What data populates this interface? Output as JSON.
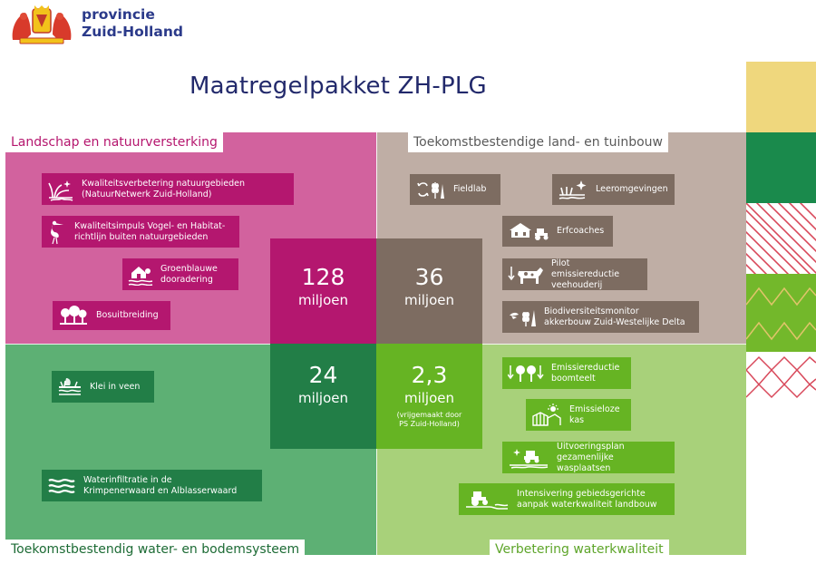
{
  "header": {
    "logo_line1": "provincie",
    "logo_line2": "Zuid-Holland",
    "title": "Maatregelpakket ZH-PLG"
  },
  "quadrants": {
    "top_left": {
      "heading": "Landschap en natuurversterking",
      "amount": "128",
      "unit": "miljoen",
      "items": [
        {
          "label": "Kwaliteitsverbetering natuurgebieden\n(NatuurNetwerk Zuid-Holland)",
          "icon": "nature-plant-icon"
        },
        {
          "label": "Kwaliteitsimpuls Vogel- en Habitat-\nrichtlijn buiten natuurgebieden",
          "icon": "heron-icon"
        },
        {
          "label": "Groenblauwe\ndooradering",
          "icon": "house-water-icon"
        },
        {
          "label": "Bosuitbreiding",
          "icon": "trees-icon"
        }
      ]
    },
    "top_right": {
      "heading": "Toekomstbestendige land- en tuinbouw",
      "amount": "36",
      "unit": "miljoen",
      "items": [
        {
          "label": "Fieldlab",
          "icon": "fieldlab-icon"
        },
        {
          "label": "Leeromgevingen",
          "icon": "sparkle-field-icon"
        },
        {
          "label": "Erfcoaches",
          "icon": "farm-tractor-icon"
        },
        {
          "label": "Pilot emissiereductie\nveehouderij",
          "icon": "cow-icon"
        },
        {
          "label": "Biodiversiteitsmonitor\nakkerbouw Zuid-Westelijke Delta",
          "icon": "crop-bird-icon"
        }
      ]
    },
    "bottom_left": {
      "heading": "Toekomstbestendig water- en bodemsysteem",
      "amount": "24",
      "unit": "miljoen",
      "items": [
        {
          "label": "Klei in veen",
          "icon": "soil-layer-icon"
        },
        {
          "label": "Waterinfiltratie in de\nKrimpenerwaard en Alblasserwaard",
          "icon": "waves-icon"
        }
      ]
    },
    "bottom_right": {
      "heading": "Verbetering waterkwaliteit",
      "amount": "2,3",
      "unit": "miljoen",
      "note": "(vrijgemaakt door\nPS Zuid-Holland)",
      "items": [
        {
          "label": "Emissiereductie\nboomteelt",
          "icon": "tree-nursery-icon"
        },
        {
          "label": "Emissieloze\nkas",
          "icon": "greenhouse-icon"
        },
        {
          "label": "Uitvoeringsplan\ngezamenlijke wasplaatsen",
          "icon": "wash-place-icon"
        },
        {
          "label": "Intensivering gebiedsgerichte\naanpak waterkwaliteit landbouw",
          "icon": "tractor-water-icon"
        }
      ]
    }
  },
  "colors": {
    "magenta": "#b4176f",
    "pink": "#d2629e",
    "taupe": "#bfaea5",
    "brown": "#7d6c61",
    "green": "#5db074",
    "dark_green": "#227e47",
    "light_green": "#a8d17a",
    "lime": "#66b423",
    "navy": "#22296b"
  }
}
